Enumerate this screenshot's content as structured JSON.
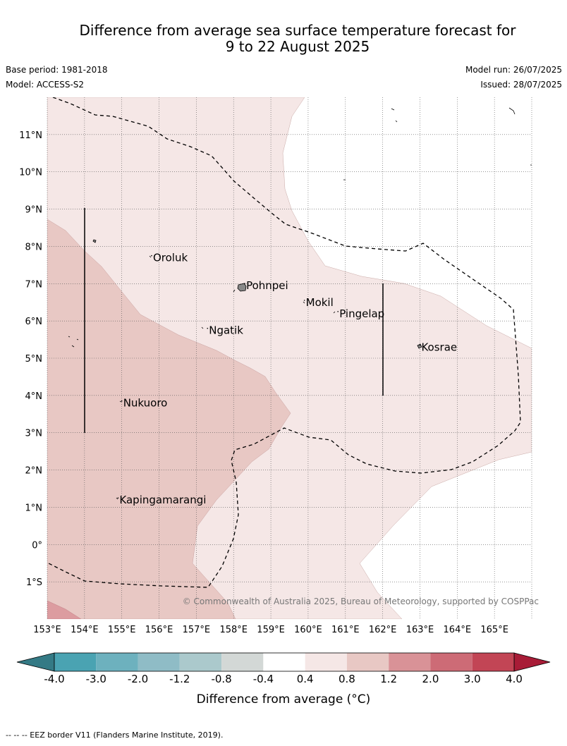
{
  "title": {
    "line1": "Difference from average sea surface temperature forecast for",
    "line2": "9 to 22 August 2025"
  },
  "meta": {
    "base_period": "Base period: 1981-2018",
    "model": "Model: ACCESS-S2",
    "model_run": "Model run: 26/07/2025",
    "issued": "Issued: 28/07/2025"
  },
  "map": {
    "lon_range": [
      153,
      166
    ],
    "lat_range": [
      -2,
      12
    ],
    "lon_ticks": [
      "153°E",
      "154°E",
      "155°E",
      "156°E",
      "157°E",
      "158°E",
      "159°E",
      "160°E",
      "161°E",
      "162°E",
      "163°E",
      "164°E",
      "165°E"
    ],
    "lat_ticks": [
      "1°S",
      "0°",
      "1°N",
      "2°N",
      "3°N",
      "4°N",
      "5°N",
      "6°N",
      "7°N",
      "8°N",
      "9°N",
      "10°N",
      "11°N"
    ],
    "places": [
      {
        "name": "Oroluk",
        "lon": 155.8,
        "lat": 7.6
      },
      {
        "name": "Pohnpei",
        "lon": 158.3,
        "lat": 6.85
      },
      {
        "name": "Mokil",
        "lon": 159.9,
        "lat": 6.4
      },
      {
        "name": "Pingelap",
        "lon": 160.8,
        "lat": 6.1
      },
      {
        "name": "Ngatik",
        "lon": 157.3,
        "lat": 5.65
      },
      {
        "name": "Kosrae",
        "lon": 163.0,
        "lat": 5.2
      },
      {
        "name": "Nukuoro",
        "lon": 155.0,
        "lat": 3.7
      },
      {
        "name": "Kapingamarangi",
        "lon": 154.9,
        "lat": 1.1
      }
    ],
    "copyright": "© Commonwealth of Australia 2025, Bureau of Meteorology, supported by COSPPac",
    "fill_colors": {
      "band_0_4_0_8": "#f5e7e6",
      "band_0_8_1_2": "#e8c8c4",
      "band_1_2_2_0": "#dc9ca0"
    }
  },
  "colorbar": {
    "label": "Difference from average (°C)",
    "ticks": [
      "-4.0",
      "-3.0",
      "-2.0",
      "-1.2",
      "-0.8",
      "-0.4",
      "0.4",
      "0.8",
      "1.2",
      "2.0",
      "3.0",
      "4.0"
    ],
    "under_color": "#347a85",
    "over_color": "#a81c37",
    "colors": [
      "#4aa3b2",
      "#6db1be",
      "#8fbcc6",
      "#abc9cc",
      "#d3d8d6",
      "#ffffff",
      "#f5e7e6",
      "#e8c8c4",
      "#d99297",
      "#cd6b76",
      "#c24555"
    ]
  },
  "footnote": "-- -- -- EEZ border V11 (Flanders Marine Institute, 2019)."
}
